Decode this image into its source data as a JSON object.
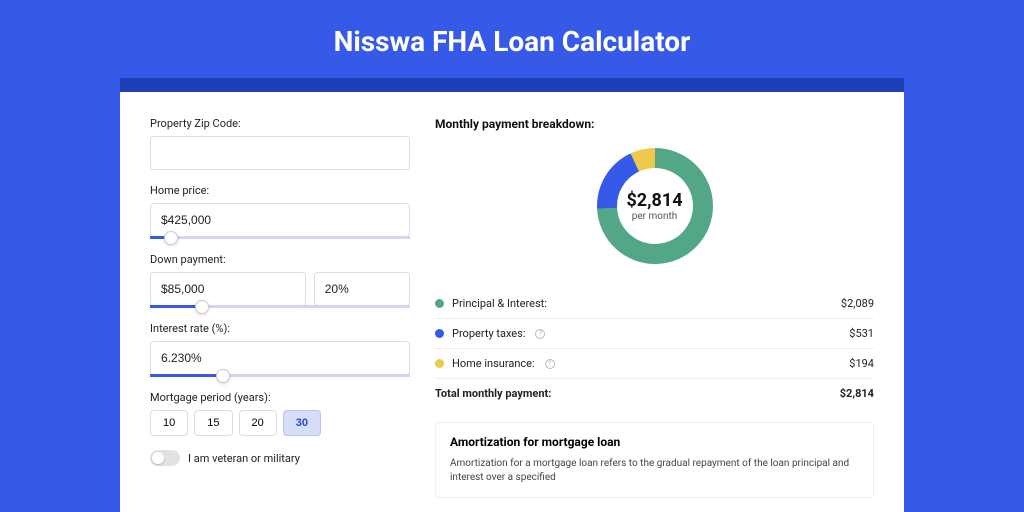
{
  "page": {
    "title": "Nisswa FHA Loan Calculator",
    "background_color": "#3759e8",
    "accent_bar_color": "#1e3fb8"
  },
  "form": {
    "zip": {
      "label": "Property Zip Code:",
      "value": ""
    },
    "home_price": {
      "label": "Home price:",
      "value": "$425,000",
      "slider_pct": 8
    },
    "down_payment": {
      "label": "Down payment:",
      "amount": "$85,000",
      "percent": "20%",
      "slider_pct": 20
    },
    "interest_rate": {
      "label": "Interest rate (%):",
      "value": "6.230%",
      "slider_pct": 28
    },
    "mortgage_period": {
      "label": "Mortgage period (years):",
      "options": [
        "10",
        "15",
        "20",
        "30"
      ],
      "selected": "30"
    },
    "veteran_toggle": {
      "label": "I am veteran or military",
      "on": false
    }
  },
  "breakdown": {
    "title": "Monthly payment breakdown:",
    "donut": {
      "center_amount": "$2,814",
      "center_sub": "per month",
      "slices": [
        {
          "key": "principal_interest",
          "value": 2089,
          "color": "#52a786"
        },
        {
          "key": "property_taxes",
          "value": 531,
          "color": "#3759e8"
        },
        {
          "key": "home_insurance",
          "value": 194,
          "color": "#efc94c"
        }
      ]
    },
    "rows": [
      {
        "label": "Principal & Interest:",
        "color": "#52a786",
        "amount": "$2,089",
        "info": false
      },
      {
        "label": "Property taxes:",
        "color": "#3759e8",
        "amount": "$531",
        "info": true
      },
      {
        "label": "Home insurance:",
        "color": "#efc94c",
        "amount": "$194",
        "info": true
      }
    ],
    "total": {
      "label": "Total monthly payment:",
      "amount": "$2,814"
    }
  },
  "amortization": {
    "title": "Amortization for mortgage loan",
    "text": "Amortization for a mortgage loan refers to the gradual repayment of the loan principal and interest over a specified"
  }
}
